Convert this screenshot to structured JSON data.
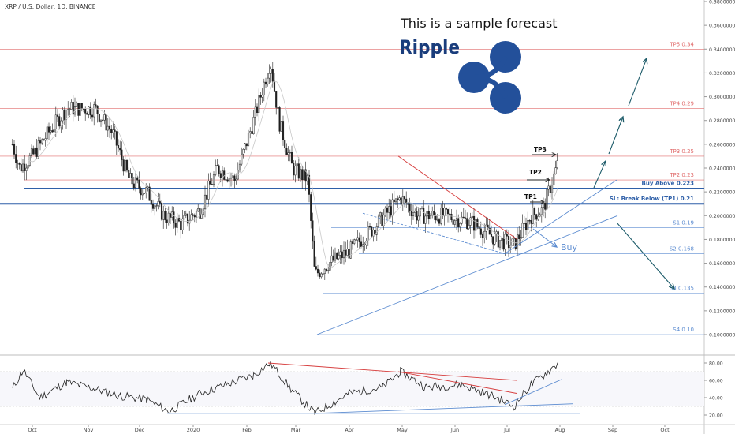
{
  "header": {
    "symbol": "XRP / U.S. Dollar, 1D, BINANCE",
    "forecast_note": "This is a sample forecast",
    "coin_name": "Ripple"
  },
  "colors": {
    "brand": "#23509a",
    "candle_up": "#1f1f1f",
    "candle_down": "#ffffff",
    "resistance": "#e06b6b",
    "support": "#5b8bd0",
    "level_strong": "#2e5fa8",
    "arrow": "#1f5d6b",
    "trendline_red": "#d63b3b"
  },
  "chart_data": [
    {
      "type": "candlestick",
      "title": "",
      "x_ticks": [
        "Oct",
        "Nov",
        "Dec",
        "2020",
        "Feb",
        "Mar",
        "Apr",
        "May",
        "Jun",
        "Jul",
        "Aug",
        "Sep",
        "Oct"
      ],
      "y_ticks": [
        "0.38000000",
        "0.36000000",
        "0.34000000",
        "0.32000000",
        "0.30000000",
        "0.28000000",
        "0.26000000",
        "0.24000000",
        "0.22000000",
        "0.20000000",
        "0.18000000",
        "0.16000000",
        "0.14000000",
        "0.12000000",
        "0.10000000"
      ],
      "ylim": [
        0.09,
        0.383
      ],
      "approx_close_path": [
        [
          "2019-09-20",
          0.26
        ],
        [
          "2019-09-24",
          0.24
        ],
        [
          "2019-10-01",
          0.25
        ],
        [
          "2019-10-10",
          0.27
        ],
        [
          "2019-10-20",
          0.29
        ],
        [
          "2019-10-28",
          0.29
        ],
        [
          "2019-11-05",
          0.29
        ],
        [
          "2019-11-15",
          0.27
        ],
        [
          "2019-11-25",
          0.23
        ],
        [
          "2019-12-05",
          0.22
        ],
        [
          "2019-12-15",
          0.2
        ],
        [
          "2019-12-25",
          0.193
        ],
        [
          "2020-01-05",
          0.205
        ],
        [
          "2020-01-15",
          0.24
        ],
        [
          "2020-01-25",
          0.23
        ],
        [
          "2020-02-05",
          0.28
        ],
        [
          "2020-02-15",
          0.33
        ],
        [
          "2020-02-20",
          0.28
        ],
        [
          "2020-02-28",
          0.24
        ],
        [
          "2020-03-08",
          0.23
        ],
        [
          "2020-03-12",
          0.15
        ],
        [
          "2020-03-20",
          0.16
        ],
        [
          "2020-04-01",
          0.17
        ],
        [
          "2020-04-15",
          0.19
        ],
        [
          "2020-04-30",
          0.215
        ],
        [
          "2020-05-10",
          0.2
        ],
        [
          "2020-05-25",
          0.2
        ],
        [
          "2020-06-10",
          0.195
        ],
        [
          "2020-06-25",
          0.18
        ],
        [
          "2020-07-05",
          0.175
        ],
        [
          "2020-07-15",
          0.2
        ],
        [
          "2020-07-22",
          0.205
        ],
        [
          "2020-07-31",
          0.245
        ]
      ],
      "levels": [
        {
          "label": "TP5 0.34",
          "value": 0.34,
          "kind": "target"
        },
        {
          "label": "TP4 0.29",
          "value": 0.29,
          "kind": "target"
        },
        {
          "label": "TP3 0.25",
          "value": 0.25,
          "kind": "target"
        },
        {
          "label": "TP2 0.23",
          "value": 0.23,
          "kind": "target"
        },
        {
          "label": "Buy Above 0.223",
          "value": 0.223,
          "kind": "entry"
        },
        {
          "label": "SL: Break Below (TP1) 0.21",
          "value": 0.21,
          "kind": "stop"
        },
        {
          "label": "S1 0.19",
          "value": 0.19,
          "kind": "support"
        },
        {
          "label": "S2 0.168",
          "value": 0.168,
          "kind": "support"
        },
        {
          "label": "S3 0.135",
          "value": 0.135,
          "kind": "support"
        },
        {
          "label": "S4 0.10",
          "value": 0.1,
          "kind": "support"
        }
      ],
      "annotations": [
        "TP1",
        "TP2",
        "TP3",
        "Buy"
      ]
    },
    {
      "type": "line",
      "title": "",
      "y_ticks": [
        "80.00",
        "60.00",
        "40.00",
        "20.00"
      ],
      "ylim": [
        15,
        85
      ],
      "reference_lines": [
        70,
        30
      ],
      "approx_values": [
        [
          "2019-09-20",
          50
        ],
        [
          "2019-09-26",
          72
        ],
        [
          "2019-10-05",
          40
        ],
        [
          "2019-10-20",
          58
        ],
        [
          "2019-11-05",
          50
        ],
        [
          "2019-11-20",
          42
        ],
        [
          "2019-12-05",
          38
        ],
        [
          "2019-12-18",
          24
        ],
        [
          "2020-01-05",
          45
        ],
        [
          "2020-01-20",
          55
        ],
        [
          "2020-02-05",
          66
        ],
        [
          "2020-02-15",
          80
        ],
        [
          "2020-02-28",
          48
        ],
        [
          "2020-03-12",
          22
        ],
        [
          "2020-04-01",
          45
        ],
        [
          "2020-04-20",
          52
        ],
        [
          "2020-04-30",
          70
        ],
        [
          "2020-05-15",
          52
        ],
        [
          "2020-06-05",
          55
        ],
        [
          "2020-06-25",
          40
        ],
        [
          "2020-07-05",
          30
        ],
        [
          "2020-07-15",
          55
        ],
        [
          "2020-07-25",
          70
        ],
        [
          "2020-07-31",
          80
        ]
      ]
    }
  ]
}
